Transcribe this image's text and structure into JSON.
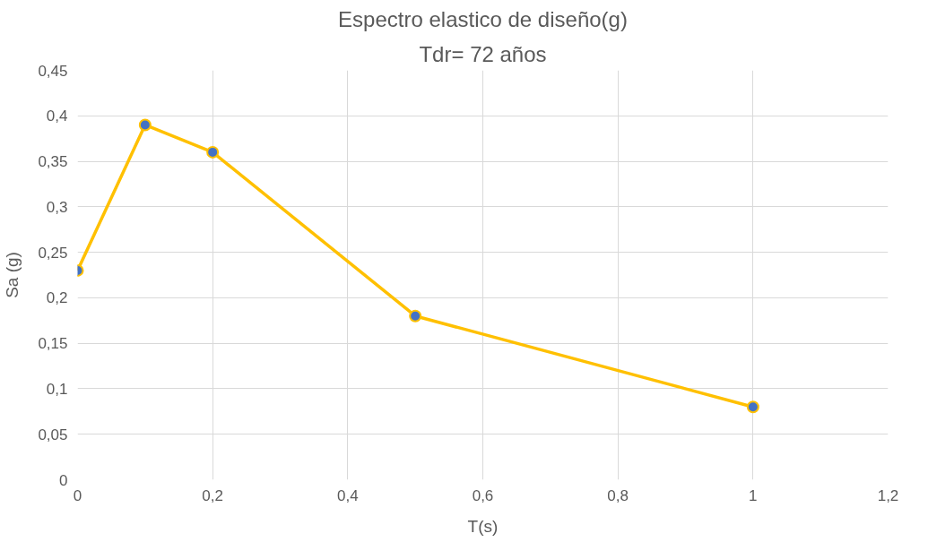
{
  "chart_data": {
    "type": "line",
    "title": "Espectro elastico de diseño(g)",
    "subtitle": "Tdr= 72 años",
    "xlabel": "T(s)",
    "ylabel": "Sa (g)",
    "x": [
      0,
      0.1,
      0.2,
      0.5,
      1
    ],
    "series": [
      {
        "color": "#ffc000",
        "values": [
          0.23,
          0.39,
          0.36,
          0.18,
          0.08
        ]
      }
    ],
    "marker": "circle",
    "grid": true,
    "line_style": "solid",
    "xlim": [
      0,
      1.2
    ],
    "ylim": [
      0,
      0.45
    ],
    "xticks": [
      {
        "value": 0,
        "label": "0"
      },
      {
        "value": 0.2,
        "label": "0,2"
      },
      {
        "value": 0.4,
        "label": "0,4"
      },
      {
        "value": 0.6,
        "label": "0,6"
      },
      {
        "value": 0.8,
        "label": "0,8"
      },
      {
        "value": 1,
        "label": "1"
      },
      {
        "value": 1.2,
        "label": "1,2"
      }
    ],
    "yticks": [
      {
        "value": 0,
        "label": "0"
      },
      {
        "value": 0.05,
        "label": "0,05"
      },
      {
        "value": 0.1,
        "label": "0,1"
      },
      {
        "value": 0.15,
        "label": "0,15"
      },
      {
        "value": 0.2,
        "label": "0,2"
      },
      {
        "value": 0.25,
        "label": "0,25"
      },
      {
        "value": 0.3,
        "label": "0,3"
      },
      {
        "value": 0.35,
        "label": "0,35"
      },
      {
        "value": 0.4,
        "label": "0,4"
      },
      {
        "value": 0.45,
        "label": "0,45"
      }
    ]
  }
}
